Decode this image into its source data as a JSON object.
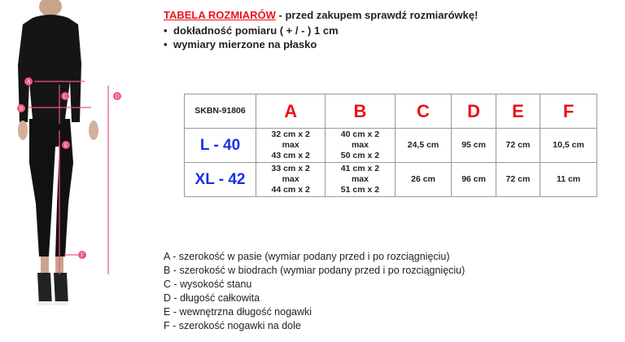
{
  "header": {
    "title": "TABELA ROZMIARÓW",
    "subtitle": " - przed zakupem sprawdź rozmiarówkę!",
    "bullets": [
      "dokładność pomiaru ( + / - ) 1 cm",
      "wymiary mierzone na płasko"
    ]
  },
  "table": {
    "code": "SKBN-91806",
    "columns": [
      "A",
      "B",
      "C",
      "D",
      "E",
      "F"
    ],
    "rows": [
      {
        "size": "L - 40",
        "cells": [
          [
            "32 cm x 2",
            "max",
            "43 cm x 2"
          ],
          [
            "40 cm x 2",
            "max",
            "50 cm x 2"
          ],
          "24,5 cm",
          "95 cm",
          "72 cm",
          "10,5 cm"
        ]
      },
      {
        "size": "XL - 42",
        "cells": [
          [
            "33 cm x 2",
            "max",
            "44 cm x 2"
          ],
          [
            "41 cm x 2",
            "max",
            "51 cm x 2"
          ],
          "26 cm",
          "96 cm",
          "72 cm",
          "11 cm"
        ]
      }
    ]
  },
  "legend": [
    "A - szerokość w pasie (wymiar podany przed i po rozciągnięciu)",
    "B - szerokość w biodrach (wymiar podany przed i po rozciągnięciu)",
    "C - wysokość stanu",
    "D - długość całkowita",
    "E - wewnętrzna długość nogawki",
    "F - szerokość nogawki na dole"
  ],
  "figure_markers": [
    "A",
    "B",
    "C",
    "D",
    "E",
    "F"
  ],
  "colors": {
    "title": "#e8141b",
    "size": "#1a2fe8",
    "marker": "#f0557a"
  }
}
